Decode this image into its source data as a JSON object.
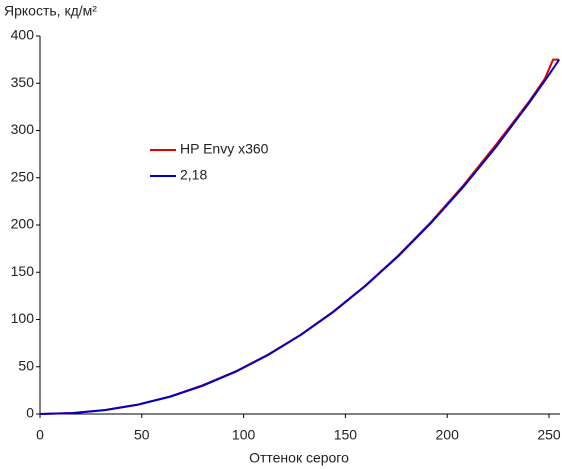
{
  "chart_data": {
    "type": "line",
    "y_label": "Яркость, кд/м²",
    "x_label": "Оттенок серого",
    "x": [
      0,
      16,
      32,
      48,
      64,
      80,
      96,
      112,
      128,
      144,
      160,
      176,
      192,
      208,
      224,
      240,
      248,
      252,
      255
    ],
    "series": [
      {
        "name": "HP Envy x360",
        "color": "#e00000",
        "values": [
          0,
          1,
          4.3,
          10,
          18.6,
          30.5,
          45,
          62.8,
          83.8,
          108.3,
          136.2,
          167.8,
          203,
          242,
          285,
          330,
          355,
          375,
          375
        ]
      },
      {
        "name": "2,18",
        "color": "#0000cc",
        "values": [
          0,
          0.9,
          4.1,
          9.8,
          18.4,
          30,
          44.6,
          62.4,
          83.5,
          107.9,
          135.8,
          167.1,
          202,
          240.5,
          282.7,
          328.6,
          352.9,
          365.4,
          375
        ]
      }
    ],
    "xlim": [
      0,
      255
    ],
    "ylim": [
      0,
      400
    ],
    "xticks": [
      0,
      50,
      100,
      150,
      200,
      250
    ],
    "yticks": [
      0,
      50,
      100,
      150,
      200,
      250,
      300,
      350,
      400
    ],
    "grid": false,
    "legend": "left"
  }
}
